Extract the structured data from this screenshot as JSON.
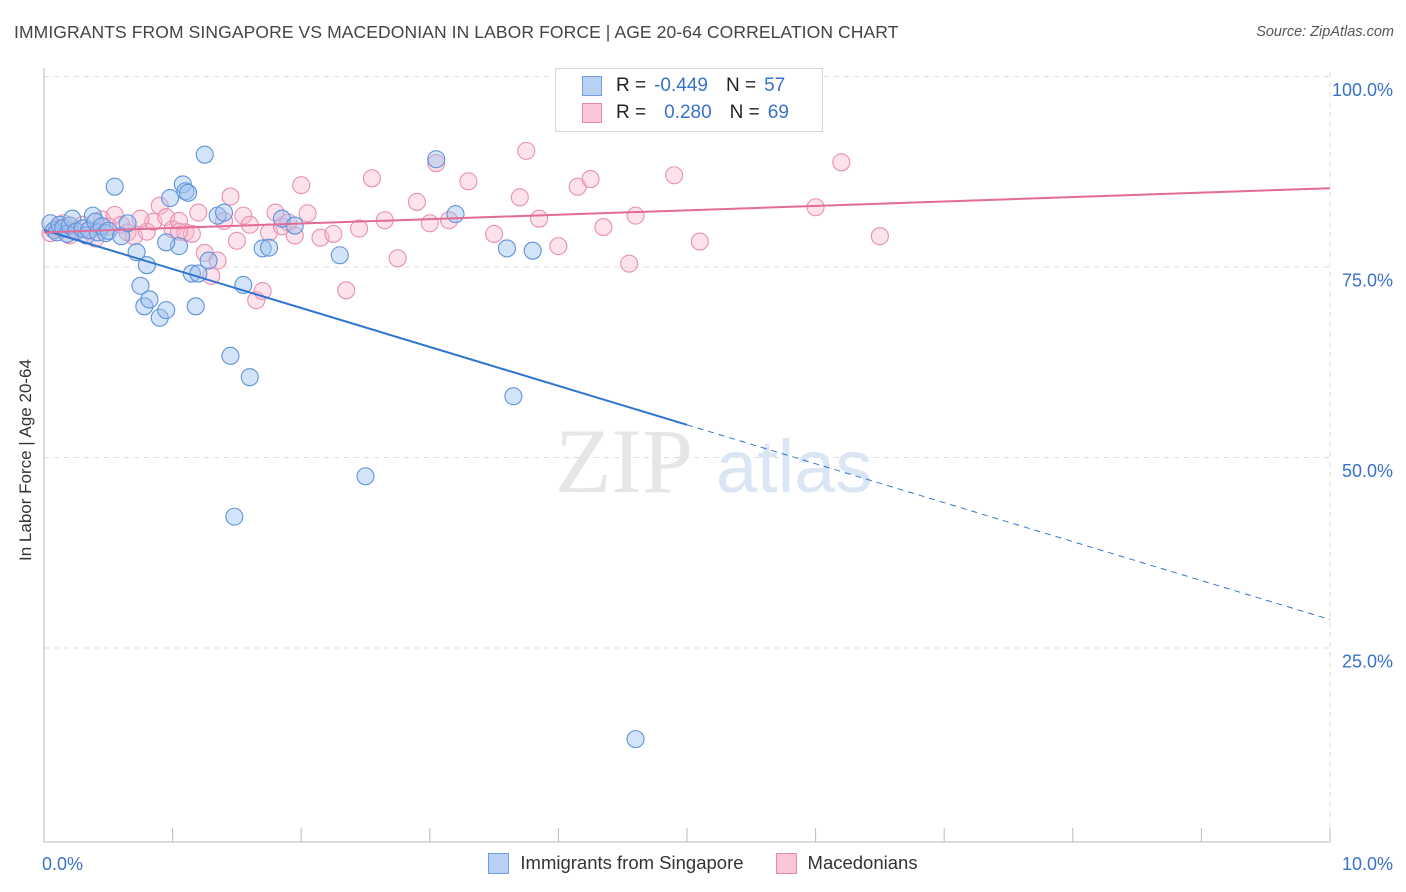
{
  "title": "IMMIGRANTS FROM SINGAPORE VS MACEDONIAN IN LABOR FORCE | AGE 20-64 CORRELATION CHART",
  "source": "Source: ZipAtlas.com",
  "watermark": {
    "zip": "ZIP",
    "atlas": "atlas"
  },
  "legend": {
    "r_label": "R =",
    "n_label": "N =",
    "rows": [
      {
        "r": "-0.449",
        "n": "57",
        "fill": "#b8d1f3",
        "stroke": "#6f9fe0"
      },
      {
        "r": "0.280",
        "n": "69",
        "fill": "#f9c6d6",
        "stroke": "#e98aaa"
      }
    ]
  },
  "bottom_legend": [
    {
      "label": "Immigrants from Singapore",
      "fill": "#b8d1f3",
      "stroke": "#6f9fe0"
    },
    {
      "label": "Macedonians",
      "fill": "#f9c6d6",
      "stroke": "#e98aaa"
    }
  ],
  "colors": {
    "blue_line": "#2f74cf",
    "pink_line": "#e26c95",
    "blue_point_fill": "rgba(158,193,240,0.45)",
    "blue_point_stroke": "#5e93da",
    "pink_point_fill": "rgba(248,182,204,0.40)",
    "pink_point_stroke": "#e990b0",
    "tick_label": "#3a72c8",
    "grid": "#dcdcdc"
  },
  "chart_data": {
    "type": "scatter",
    "xlabel": "In Labor Force | Age 20-64",
    "ylabel": "In Labor Force | Age 20-64",
    "xlim": [
      0,
      10
    ],
    "ylim": [
      0,
      100
    ],
    "x_tick_labels": [
      {
        "value": 0,
        "label": "0.0%"
      },
      {
        "value": 10,
        "label": "10.0%"
      }
    ],
    "y_tick_labels": [
      {
        "value": 100,
        "label": "100.0%"
      },
      {
        "value": 75,
        "label": "75.0%"
      },
      {
        "value": 50,
        "label": "50.0%"
      },
      {
        "value": 25,
        "label": "25.0%"
      }
    ],
    "grid": true,
    "series": [
      {
        "name": "Immigrants from Singapore",
        "trend": {
          "x0": 0,
          "y0": 80.3,
          "x1": 10,
          "y1": 29.2,
          "solid_until_x": 5.0
        },
        "points": [
          [
            0.05,
            81.2
          ],
          [
            0.08,
            80.3
          ],
          [
            0.1,
            80.0
          ],
          [
            0.12,
            81.0
          ],
          [
            0.15,
            80.6
          ],
          [
            0.18,
            79.8
          ],
          [
            0.2,
            80.9
          ],
          [
            0.22,
            81.8
          ],
          [
            0.25,
            80.1
          ],
          [
            0.3,
            80.5
          ],
          [
            0.33,
            79.6
          ],
          [
            0.35,
            80.3
          ],
          [
            0.38,
            82.2
          ],
          [
            0.4,
            81.4
          ],
          [
            0.42,
            80.0
          ],
          [
            0.45,
            80.8
          ],
          [
            0.48,
            79.9
          ],
          [
            0.5,
            80.2
          ],
          [
            0.55,
            86.0
          ],
          [
            0.6,
            79.5
          ],
          [
            0.65,
            81.2
          ],
          [
            0.72,
            77.4
          ],
          [
            0.75,
            73.0
          ],
          [
            0.78,
            70.3
          ],
          [
            0.8,
            75.7
          ],
          [
            0.82,
            71.2
          ],
          [
            0.9,
            68.8
          ],
          [
            0.95,
            69.8
          ],
          [
            0.98,
            84.5
          ],
          [
            1.05,
            78.2
          ],
          [
            1.08,
            86.3
          ],
          [
            1.1,
            85.4
          ],
          [
            1.12,
            85.2
          ],
          [
            1.15,
            74.6
          ],
          [
            1.18,
            70.3
          ],
          [
            1.2,
            74.6
          ],
          [
            1.25,
            90.2
          ],
          [
            1.28,
            76.3
          ],
          [
            1.35,
            82.2
          ],
          [
            1.4,
            82.6
          ],
          [
            1.45,
            63.8
          ],
          [
            1.48,
            42.7
          ],
          [
            1.55,
            73.1
          ],
          [
            1.6,
            61.0
          ],
          [
            1.7,
            77.9
          ],
          [
            1.75,
            78.0
          ],
          [
            1.85,
            81.8
          ],
          [
            1.95,
            80.9
          ],
          [
            2.3,
            77.0
          ],
          [
            2.5,
            48.0
          ],
          [
            3.05,
            89.6
          ],
          [
            3.2,
            82.4
          ],
          [
            3.6,
            77.9
          ],
          [
            3.65,
            58.5
          ],
          [
            3.8,
            77.6
          ],
          [
            4.6,
            13.5
          ],
          [
            0.95,
            78.7
          ]
        ]
      },
      {
        "name": "Macedonians",
        "trend": {
          "x0": 0,
          "y0": 80.0,
          "x1": 10,
          "y1": 85.8,
          "solid_until_x": 10
        },
        "points": [
          [
            0.05,
            79.9
          ],
          [
            0.1,
            80.5
          ],
          [
            0.15,
            81.2
          ],
          [
            0.2,
            79.6
          ],
          [
            0.25,
            80.3
          ],
          [
            0.3,
            81.0
          ],
          [
            0.35,
            80.2
          ],
          [
            0.4,
            79.2
          ],
          [
            0.45,
            81.7
          ],
          [
            0.5,
            80.8
          ],
          [
            0.55,
            82.3
          ],
          [
            0.6,
            81.0
          ],
          [
            0.65,
            80.0
          ],
          [
            0.7,
            79.5
          ],
          [
            0.8,
            80.1
          ],
          [
            0.85,
            81.4
          ],
          [
            0.9,
            83.5
          ],
          [
            0.95,
            82.0
          ],
          [
            1.0,
            80.4
          ],
          [
            1.05,
            81.5
          ],
          [
            1.1,
            80.0
          ],
          [
            1.15,
            79.8
          ],
          [
            1.2,
            82.6
          ],
          [
            1.25,
            77.3
          ],
          [
            1.3,
            74.3
          ],
          [
            1.35,
            76.3
          ],
          [
            1.4,
            81.5
          ],
          [
            1.45,
            84.7
          ],
          [
            1.5,
            78.9
          ],
          [
            1.55,
            82.2
          ],
          [
            1.6,
            81.0
          ],
          [
            1.65,
            71.1
          ],
          [
            1.7,
            72.3
          ],
          [
            1.75,
            80.0
          ],
          [
            1.8,
            82.6
          ],
          [
            1.85,
            80.8
          ],
          [
            1.9,
            81.3
          ],
          [
            1.95,
            79.6
          ],
          [
            2.0,
            86.2
          ],
          [
            2.05,
            82.5
          ],
          [
            2.15,
            79.3
          ],
          [
            2.25,
            79.8
          ],
          [
            2.35,
            72.4
          ],
          [
            2.45,
            80.5
          ],
          [
            2.55,
            87.1
          ],
          [
            2.65,
            81.6
          ],
          [
            2.75,
            76.6
          ],
          [
            2.9,
            84.0
          ],
          [
            3.0,
            81.2
          ],
          [
            3.05,
            89.1
          ],
          [
            3.15,
            81.6
          ],
          [
            3.3,
            86.7
          ],
          [
            3.5,
            79.8
          ],
          [
            3.7,
            84.6
          ],
          [
            3.75,
            90.7
          ],
          [
            3.85,
            81.8
          ],
          [
            4.0,
            78.2
          ],
          [
            4.15,
            86.0
          ],
          [
            4.25,
            87.0
          ],
          [
            4.35,
            80.7
          ],
          [
            4.55,
            75.9
          ],
          [
            4.6,
            82.2
          ],
          [
            4.9,
            87.5
          ],
          [
            5.1,
            78.8
          ],
          [
            6.0,
            83.3
          ],
          [
            6.2,
            89.2
          ],
          [
            6.5,
            79.5
          ],
          [
            1.05,
            80.1
          ],
          [
            0.75,
            81.8
          ]
        ]
      }
    ]
  }
}
